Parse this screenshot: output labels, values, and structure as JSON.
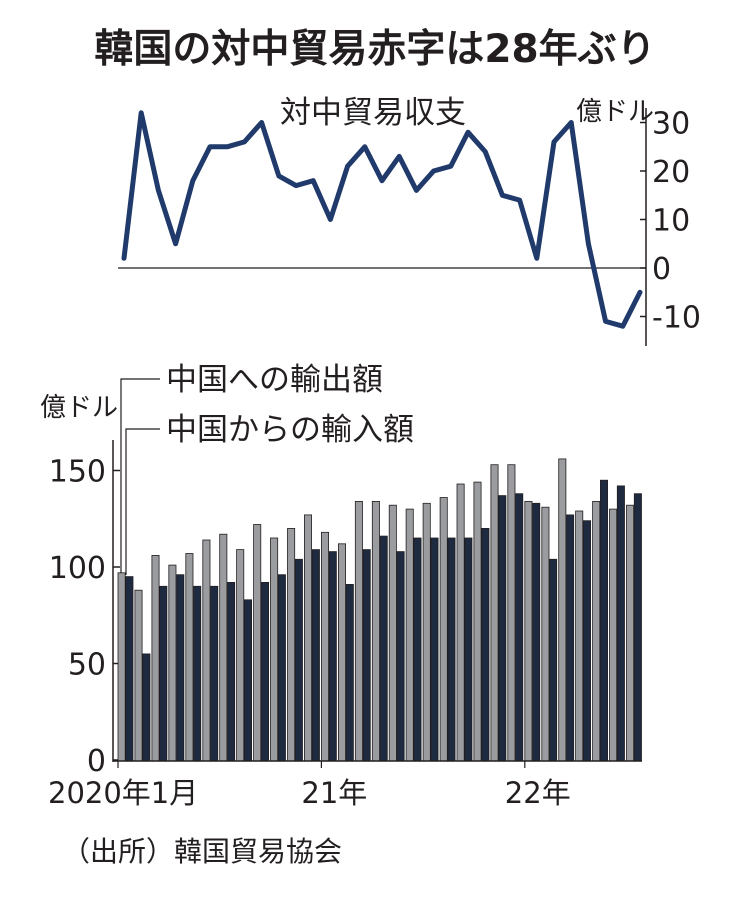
{
  "title": "韓国の対中貿易赤字は28年ぶり",
  "source": "（出所）韓国貿易協会",
  "chart_data": [
    {
      "type": "line",
      "title": "対中貿易収支",
      "unit_label": "億ドル",
      "ylim": [
        -15,
        35
      ],
      "yticks": [
        "30",
        "20",
        "10",
        "0",
        "-10"
      ],
      "ytick_values": [
        30,
        20,
        10,
        0,
        -10
      ],
      "zero_line": true,
      "color": "#1f3a6b",
      "values": [
        2,
        32,
        16,
        5,
        18,
        25,
        25,
        26,
        30,
        19,
        17,
        18,
        10,
        21,
        25,
        18,
        23,
        16,
        20,
        21,
        28,
        24,
        15,
        14,
        2,
        26,
        30,
        5,
        -11,
        -12,
        -5
      ]
    },
    {
      "type": "bar",
      "unit_label": "億ドル",
      "ylim": [
        0,
        160
      ],
      "yticks": [
        "150",
        "100",
        "50",
        "0"
      ],
      "ytick_values": [
        150,
        100,
        50,
        0
      ],
      "series": [
        {
          "name": "中国への輸出額",
          "color": "#9a9c9f",
          "values": [
            97,
            88,
            106,
            101,
            107,
            114,
            117,
            109,
            122,
            115,
            120,
            127,
            118,
            112,
            134,
            134,
            132,
            130,
            133,
            136,
            143,
            144,
            153,
            153,
            134,
            131,
            156,
            129,
            134,
            130,
            132
          ]
        },
        {
          "name": "中国からの輸入額",
          "color": "#1d2a40",
          "values": [
            95,
            55,
            90,
            96,
            90,
            90,
            92,
            83,
            92,
            96,
            104,
            109,
            108,
            91,
            109,
            116,
            108,
            115,
            115,
            115,
            115,
            120,
            137,
            138,
            133,
            104,
            127,
            124,
            145,
            142,
            138
          ]
        }
      ],
      "x_labels": [
        {
          "label": "2020年1月",
          "index": 0
        },
        {
          "label": "21年",
          "index": 12
        },
        {
          "label": "22年",
          "index": 24
        }
      ]
    }
  ]
}
